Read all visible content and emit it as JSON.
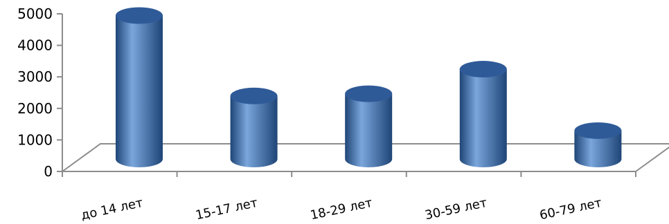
{
  "chart_data": {
    "type": "bar",
    "style": "3d-cylinder",
    "categories": [
      "до 14 лет",
      "15-17 лет",
      "18-29 лет",
      "30-59 лет",
      "60-79 лет"
    ],
    "values": [
      4550,
      2000,
      2070,
      2850,
      900
    ],
    "ylim": [
      0,
      5000
    ],
    "yticks": [
      0,
      1000,
      2000,
      3000,
      4000,
      5000
    ],
    "title": "",
    "xlabel": "",
    "ylabel": "",
    "grid": false,
    "legend": "none",
    "bar_color": "#4a7cc0",
    "bar_light_color": "#7aa6dc",
    "bar_dark_color": "#1f4577",
    "top_color": "#2f5a98",
    "axis_color": "#8c8c8c"
  }
}
